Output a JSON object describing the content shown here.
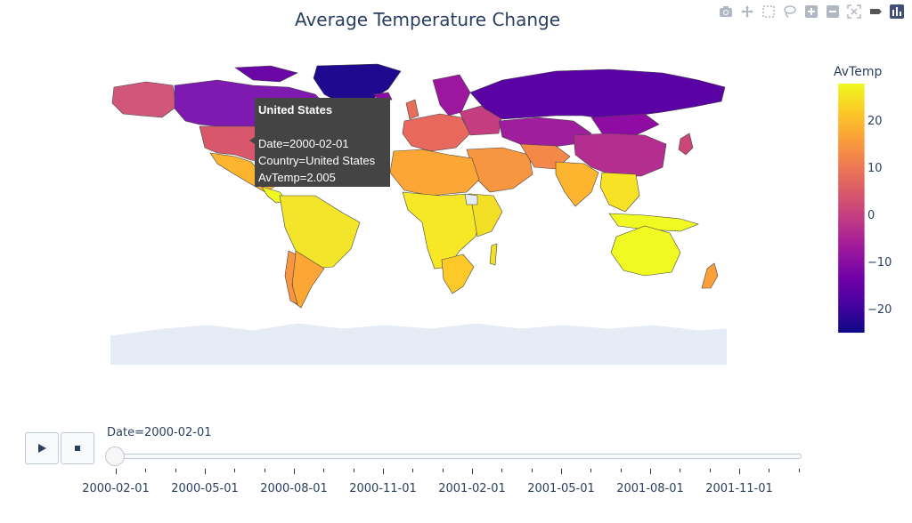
{
  "title": "Average Temperature Change",
  "modebar": {
    "buttons": [
      {
        "name": "camera-icon"
      },
      {
        "name": "pan-icon"
      },
      {
        "name": "box-select-icon"
      },
      {
        "name": "lasso-select-icon"
      },
      {
        "name": "zoom-in-icon"
      },
      {
        "name": "zoom-out-icon"
      },
      {
        "name": "reset-view-icon"
      },
      {
        "name": "hover-toggle-icon"
      },
      {
        "name": "plotly-logo-icon"
      }
    ]
  },
  "tooltip": {
    "title": "United States",
    "date": "Date=2000-02-01",
    "country": "Country=United States",
    "value": "AvTemp=2.005"
  },
  "colorbar": {
    "title": "AvTemp",
    "ticks": [
      "20",
      "10",
      "0",
      "−10",
      "−20"
    ],
    "colors": [
      "#f0f921",
      "#fdca26",
      "#fb9f3a",
      "#ed7953",
      "#d8576b",
      "#bd3786",
      "#9c179e",
      "#7201a8",
      "#46039f",
      "#0d0887"
    ]
  },
  "slider": {
    "current_label": "Date=2000-02-01",
    "ticks": [
      "2000-02-01",
      "2000-05-01",
      "2000-08-01",
      "2000-11-01",
      "2001-02-01",
      "2001-05-01",
      "2001-08-01",
      "2001-11-01"
    ]
  },
  "controls": {
    "play": "play-icon",
    "stop": "stop-icon"
  }
}
